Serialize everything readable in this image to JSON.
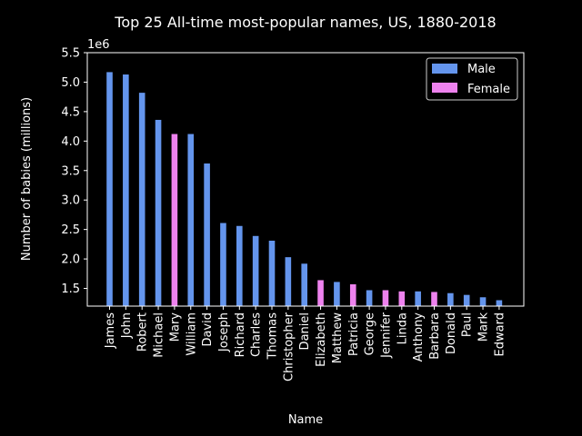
{
  "chart_data": {
    "type": "bar",
    "title": "Top 25 All-time most-popular names, US, 1880-2018",
    "xlabel": "Name",
    "ylabel": "Number of babies (millions)",
    "y_offset_label": "1e6",
    "ylim": [
      1.2,
      5.5
    ],
    "yticks": [
      "1.5",
      "2.0",
      "2.5",
      "3.0",
      "3.5",
      "4.0",
      "4.5",
      "5.0",
      "5.5"
    ],
    "legend_position": "top-right",
    "series": [
      {
        "name": "Male",
        "color": "#6495ED"
      },
      {
        "name": "Female",
        "color": "#EE82EE"
      }
    ],
    "bars": [
      {
        "name": "James",
        "value": 5.17,
        "series": "Male"
      },
      {
        "name": "John",
        "value": 5.13,
        "series": "Male"
      },
      {
        "name": "Robert",
        "value": 4.82,
        "series": "Male"
      },
      {
        "name": "Michael",
        "value": 4.36,
        "series": "Male"
      },
      {
        "name": "Mary",
        "value": 4.12,
        "series": "Female"
      },
      {
        "name": "William",
        "value": 4.12,
        "series": "Male"
      },
      {
        "name": "David",
        "value": 3.62,
        "series": "Male"
      },
      {
        "name": "Joseph",
        "value": 2.61,
        "series": "Male"
      },
      {
        "name": "Richard",
        "value": 2.56,
        "series": "Male"
      },
      {
        "name": "Charles",
        "value": 2.39,
        "series": "Male"
      },
      {
        "name": "Thomas",
        "value": 2.31,
        "series": "Male"
      },
      {
        "name": "Christopher",
        "value": 2.03,
        "series": "Male"
      },
      {
        "name": "Daniel",
        "value": 1.92,
        "series": "Male"
      },
      {
        "name": "Elizabeth",
        "value": 1.64,
        "series": "Female"
      },
      {
        "name": "Matthew",
        "value": 1.61,
        "series": "Male"
      },
      {
        "name": "Patricia",
        "value": 1.57,
        "series": "Female"
      },
      {
        "name": "George",
        "value": 1.47,
        "series": "Male"
      },
      {
        "name": "Jennifer",
        "value": 1.47,
        "series": "Female"
      },
      {
        "name": "Linda",
        "value": 1.45,
        "series": "Female"
      },
      {
        "name": "Anthony",
        "value": 1.45,
        "series": "Male"
      },
      {
        "name": "Barbara",
        "value": 1.44,
        "series": "Female"
      },
      {
        "name": "Donald",
        "value": 1.42,
        "series": "Male"
      },
      {
        "name": "Paul",
        "value": 1.39,
        "series": "Male"
      },
      {
        "name": "Mark",
        "value": 1.35,
        "series": "Male"
      },
      {
        "name": "Edward",
        "value": 1.3,
        "series": "Male"
      }
    ]
  }
}
